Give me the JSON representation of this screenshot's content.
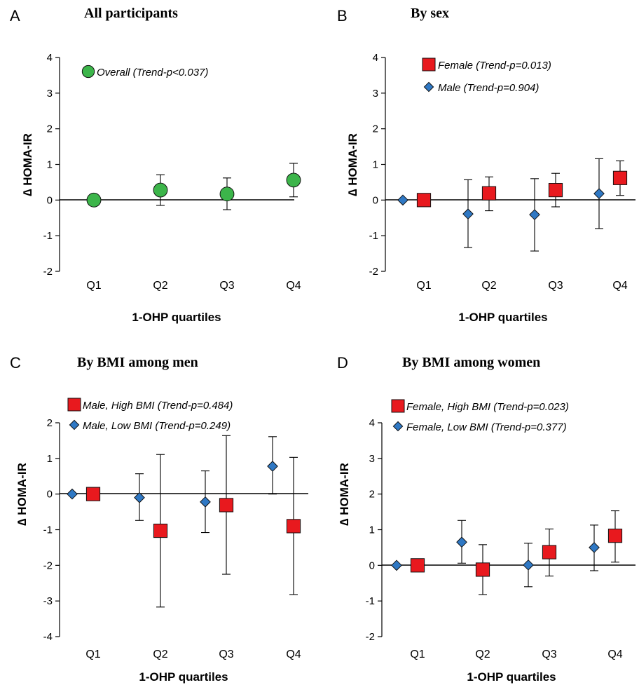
{
  "colors": {
    "overall": "#3cb54a",
    "female": "#e8191e",
    "male": "#2f78c4"
  },
  "chart_data": [
    {
      "panel": "A",
      "title": "All participants",
      "type": "scatter",
      "xlabel": "1-OHP quartiles",
      "ylabel": "∆ HOMA-IR",
      "ylim": [
        -2,
        4
      ],
      "yticks": [
        "-2",
        "-1",
        "0",
        "1",
        "2",
        "3",
        "4"
      ],
      "categories": [
        "Q1",
        "Q2",
        "Q3",
        "Q4"
      ],
      "legend_position": "top-left",
      "series": [
        {
          "name": "Overall (Trend-p<0.037)",
          "marker": "circle",
          "color": "#3cb54a",
          "offset": 0,
          "values": [
            0,
            0.28,
            0.17,
            0.56
          ],
          "lower": [
            0,
            -0.15,
            -0.27,
            0.09
          ],
          "upper": [
            0,
            0.71,
            0.62,
            1.03
          ]
        }
      ]
    },
    {
      "panel": "B",
      "title": "By sex",
      "type": "scatter",
      "xlabel": "1-OHP quartiles",
      "ylabel": "∆ HOMA-IR",
      "ylim": [
        -2,
        4
      ],
      "yticks": [
        "-2",
        "-1",
        "0",
        "1",
        "2",
        "3",
        "4"
      ],
      "categories": [
        "Q1",
        "Q2",
        "Q3",
        "Q4"
      ],
      "legend_position": "top-left",
      "series": [
        {
          "name": "Female (Trend-p=0.013)",
          "marker": "square",
          "color": "#e8191e",
          "offset": 0,
          "values": [
            0,
            0.19,
            0.28,
            0.62
          ],
          "lower": [
            0,
            -0.3,
            -0.19,
            0.13
          ],
          "upper": [
            0,
            0.65,
            0.75,
            1.1
          ]
        },
        {
          "name": "Male (Trend-p=0.904)",
          "marker": "diamond",
          "color": "#2f78c4",
          "offset": -1,
          "values": [
            0,
            -0.39,
            -0.41,
            0.18
          ],
          "lower": [
            0,
            -1.33,
            -1.43,
            -0.8
          ],
          "upper": [
            0,
            0.57,
            0.6,
            1.16
          ]
        }
      ]
    },
    {
      "panel": "C",
      "title": "By BMI among men",
      "type": "scatter",
      "xlabel": "1-OHP quartiles",
      "ylabel": "∆ HOMA-IR",
      "ylim": [
        -4,
        2
      ],
      "yticks": [
        "-4",
        "-3",
        "-2",
        "-1",
        "0",
        "1",
        "2"
      ],
      "categories": [
        "Q1",
        "Q2",
        "Q3",
        "Q4"
      ],
      "legend_position": "top-left",
      "series": [
        {
          "name": "Male, High BMI (Trend-p=0.484)",
          "marker": "square",
          "color": "#e8191e",
          "offset": 0,
          "values": [
            0,
            -1.03,
            -0.31,
            -0.9
          ],
          "lower": [
            0,
            -3.17,
            -2.25,
            -2.82
          ],
          "upper": [
            0,
            1.11,
            1.64,
            1.03
          ]
        },
        {
          "name": "Male, Low BMI (Trend-p=0.249)",
          "marker": "diamond",
          "color": "#2f78c4",
          "offset": -1,
          "values": [
            0,
            -0.1,
            -0.22,
            0.78
          ],
          "lower": [
            0,
            -0.74,
            -1.08,
            0
          ],
          "upper": [
            0,
            0.57,
            0.65,
            1.61
          ]
        }
      ]
    },
    {
      "panel": "D",
      "title": "By BMI among women",
      "type": "scatter",
      "xlabel": "1-OHP quartiles",
      "ylabel": "∆ HOMA-IR",
      "ylim": [
        -2,
        4
      ],
      "yticks": [
        "-2",
        "-1",
        "0",
        "1",
        "2",
        "3",
        "4"
      ],
      "categories": [
        "Q1",
        "Q2",
        "Q3",
        "Q4"
      ],
      "legend_position": "top-left",
      "series": [
        {
          "name": "Female, High BMI (Trend-p=0.023)",
          "marker": "square",
          "color": "#e8191e",
          "offset": 0,
          "values": [
            0,
            -0.12,
            0.37,
            0.83
          ],
          "lower": [
            0,
            -0.82,
            -0.3,
            0.09
          ],
          "upper": [
            0,
            0.58,
            1.02,
            1.53
          ]
        },
        {
          "name": "Female, Low BMI (Trend-p=0.377)",
          "marker": "diamond",
          "color": "#2f78c4",
          "offset": -1,
          "values": [
            0,
            0.65,
            0.01,
            0.5
          ],
          "lower": [
            0,
            0.06,
            -0.6,
            -0.15
          ],
          "upper": [
            0,
            1.26,
            0.62,
            1.13
          ]
        }
      ]
    }
  ]
}
